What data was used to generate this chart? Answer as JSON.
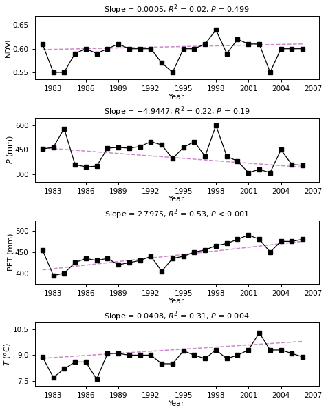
{
  "years": [
    1982,
    1983,
    1984,
    1985,
    1986,
    1987,
    1988,
    1989,
    1990,
    1991,
    1992,
    1993,
    1994,
    1995,
    1996,
    1997,
    1998,
    1999,
    2000,
    2001,
    2002,
    2003,
    2004,
    2005,
    2006
  ],
  "ndvi": [
    0.61,
    0.55,
    0.55,
    0.59,
    0.6,
    0.59,
    0.6,
    0.61,
    0.6,
    0.6,
    0.6,
    0.57,
    0.55,
    0.6,
    0.6,
    0.61,
    0.64,
    0.59,
    0.62,
    0.61,
    0.61,
    0.55,
    0.6,
    0.6,
    0.6
  ],
  "ndvi_ylim": [
    0.535,
    0.67
  ],
  "ndvi_yticks": [
    0.55,
    0.6,
    0.65
  ],
  "ndvi_label": "NDVI",
  "ndvi_title": "Slope = 0.0005, $R^2$ = 0.02, $P$ = 0.499",
  "ndvi_slope": 0.0005,
  "ndvi_intercept_val": 0.5982,
  "P": [
    455,
    465,
    580,
    360,
    345,
    350,
    460,
    465,
    460,
    470,
    500,
    480,
    395,
    465,
    500,
    410,
    600,
    410,
    380,
    310,
    330,
    310,
    450,
    360,
    355
  ],
  "P_ylim": [
    255,
    645
  ],
  "P_yticks": [
    300,
    450,
    600
  ],
  "P_label": "$P$ (mm)",
  "P_title": "Slope = $-$4.9447, $R^2$ = 0.22, $P$ = 0.19",
  "P_slope": -4.9447,
  "P_intercept_val": 462,
  "PET": [
    455,
    395,
    400,
    425,
    435,
    430,
    435,
    420,
    425,
    430,
    440,
    405,
    435,
    440,
    450,
    455,
    465,
    470,
    480,
    490,
    480,
    450,
    475,
    475,
    480
  ],
  "PET_ylim": [
    375,
    525
  ],
  "PET_yticks": [
    400,
    450,
    500
  ],
  "PET_label": "PET (mm)",
  "PET_title": "Slope = 2.7975, $R^2$ = 0.53, $P$ < 0.001",
  "PET_slope": 2.7975,
  "PET_intercept_val": 408,
  "T": [
    8.9,
    7.7,
    8.2,
    8.6,
    8.6,
    7.6,
    9.1,
    9.1,
    9.0,
    9.0,
    9.0,
    8.5,
    8.5,
    9.25,
    9.0,
    8.8,
    9.3,
    8.8,
    9.0,
    9.3,
    10.3,
    9.3,
    9.3,
    9.1,
    8.9
  ],
  "T_ylim": [
    7.2,
    10.9
  ],
  "T_yticks": [
    7.5,
    9.0,
    10.5
  ],
  "T_label": "$T$ (°C)",
  "T_title": "Slope = 0.0408, $R^2$ = 0.31, $P$ = 0.004",
  "T_slope": 0.0408,
  "T_intercept_val": 8.82,
  "xticks": [
    1983,
    1986,
    1989,
    1992,
    1995,
    1998,
    2001,
    2004,
    2007
  ],
  "xlim": [
    1981.3,
    2007.5
  ],
  "line_color": "black",
  "trend_color": "#cc88cc",
  "marker": "s",
  "marker_size": 5,
  "bg_color": "white"
}
